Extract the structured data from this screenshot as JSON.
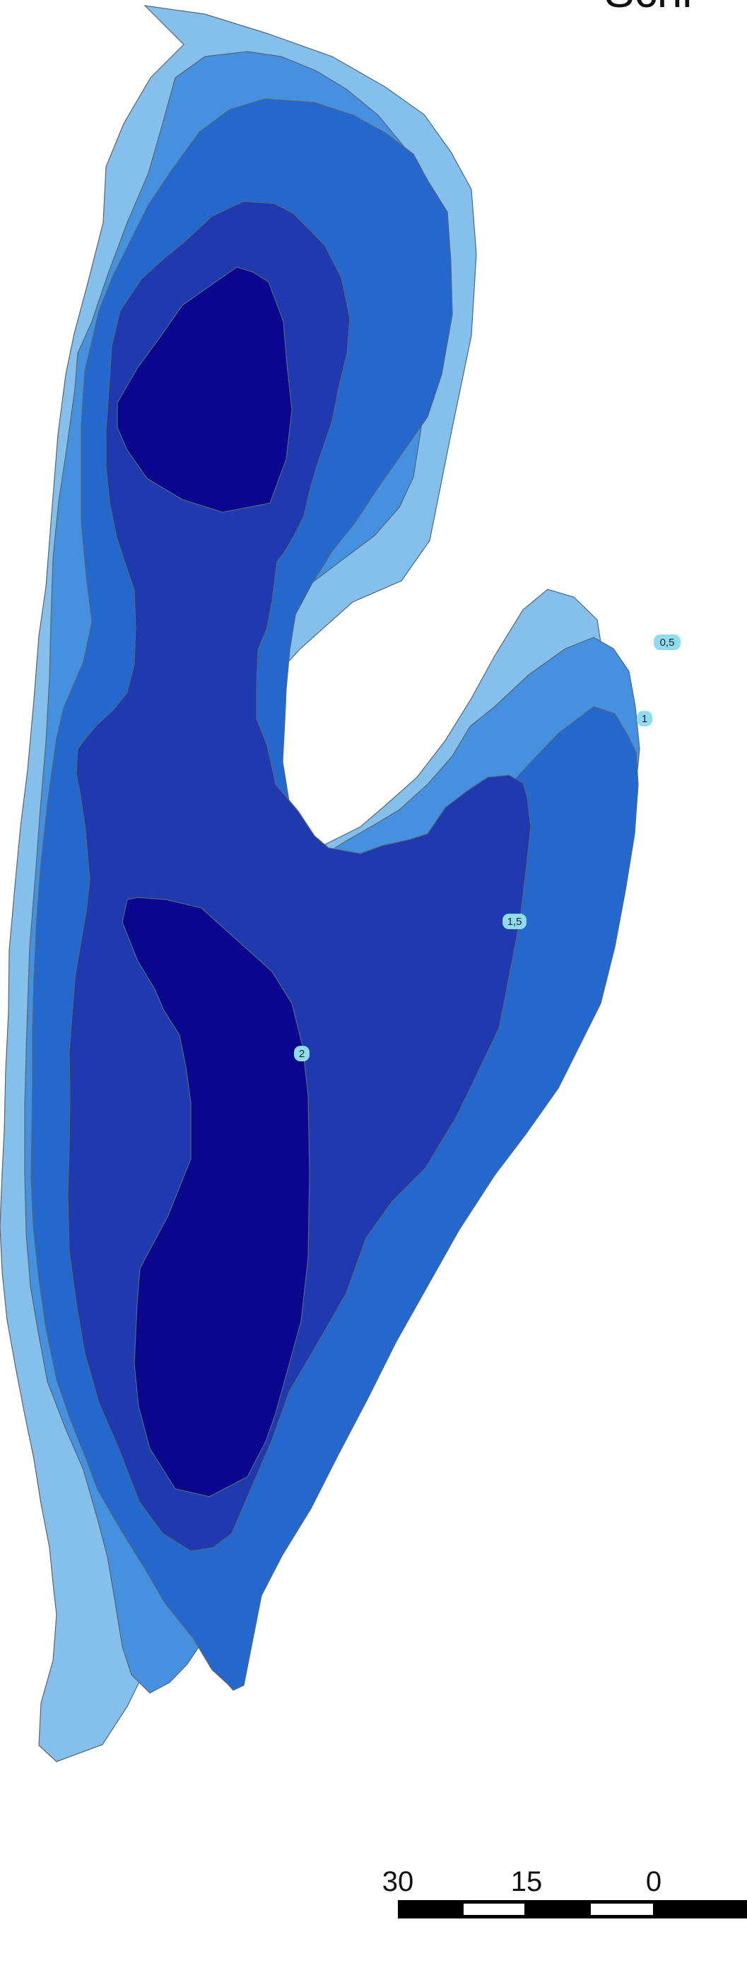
{
  "map": {
    "title": "Schi",
    "colors": {
      "depth_0": "#85bfeb",
      "depth_0_5": "#4591e0",
      "depth_1": "#2468cd",
      "depth_1_5": "#1e3aae",
      "depth_2": "#0b078f",
      "label_fill": "#8fdcf0",
      "outline": "#556677"
    },
    "contour_labels": [
      "0,5",
      "1",
      "1,5",
      "2"
    ],
    "scale_bar": {
      "labels": [
        "30",
        "15",
        "0"
      ]
    }
  }
}
